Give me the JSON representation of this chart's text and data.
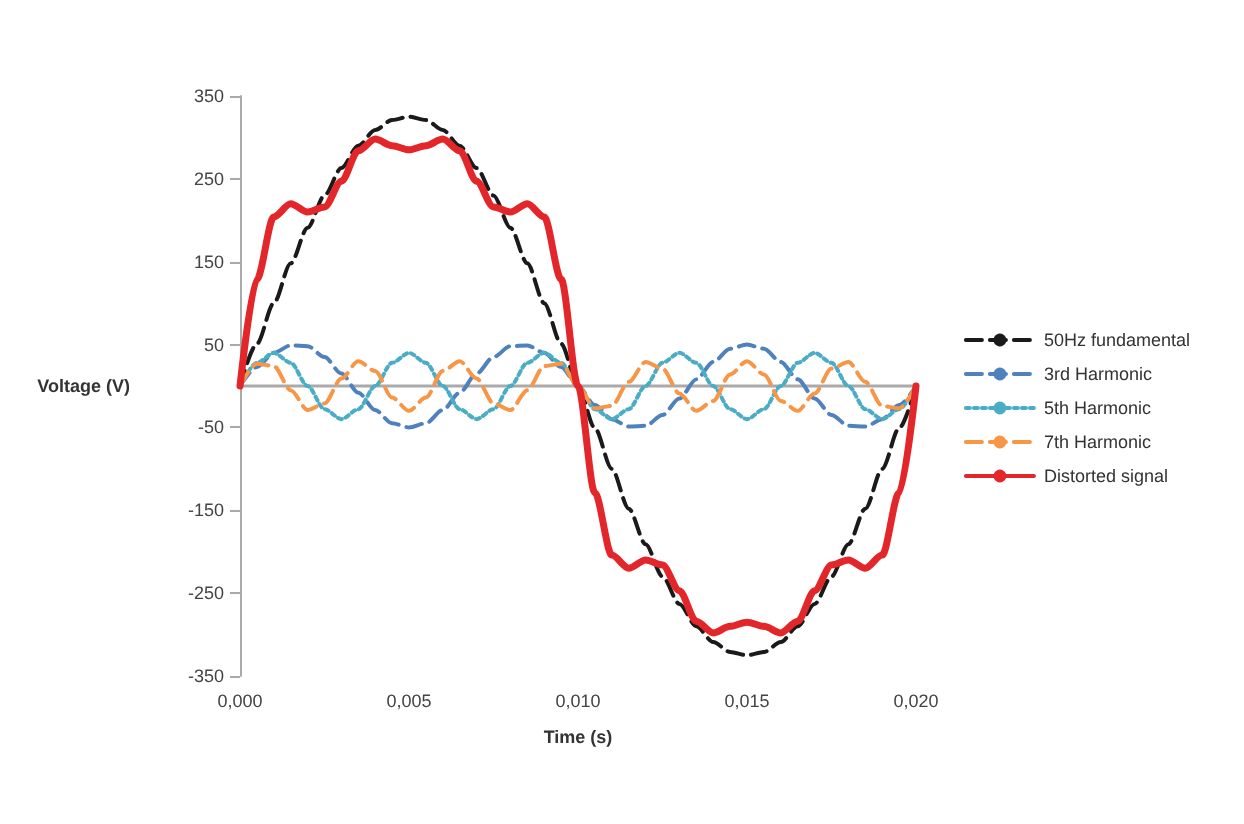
{
  "chart_data": {
    "type": "line",
    "xlabel": "Time (s)",
    "ylabel": "Voltage (V)",
    "x": [
      0,
      0.0005,
      0.001,
      0.0015,
      0.002,
      0.0025,
      0.003,
      0.0035,
      0.004,
      0.0045,
      0.005,
      0.0055,
      0.006,
      0.0065,
      0.007,
      0.0075,
      0.008,
      0.0085,
      0.009,
      0.0095,
      0.01,
      0.0105,
      0.011,
      0.0115,
      0.012,
      0.0125,
      0.013,
      0.0135,
      0.014,
      0.0145,
      0.015,
      0.0155,
      0.016,
      0.0165,
      0.017,
      0.0175,
      0.018,
      0.0185,
      0.019,
      0.0195,
      0.02
    ],
    "xlim": [
      0,
      0.02
    ],
    "xticks": [
      {
        "value": 0,
        "label": "0,000"
      },
      {
        "value": 0.005,
        "label": "0,005"
      },
      {
        "value": 0.01,
        "label": "0,010"
      },
      {
        "value": 0.015,
        "label": "0,015"
      },
      {
        "value": 0.02,
        "label": "0,020"
      }
    ],
    "ylim": [
      -350,
      350
    ],
    "yticks": [
      -350,
      -250,
      -150,
      -50,
      50,
      150,
      250,
      350
    ],
    "grid": false,
    "legend": "right",
    "marker": "none",
    "series": [
      {
        "name": "50Hz fundamental",
        "color": "#1a1a1a",
        "line_style": "dashed",
        "values": [
          0,
          51,
          100,
          148,
          191,
          230,
          263,
          290,
          309,
          321,
          325,
          321,
          309,
          290,
          263,
          230,
          191,
          148,
          100,
          51,
          0,
          -51,
          -100,
          -148,
          -191,
          -230,
          -263,
          -290,
          -309,
          -321,
          -325,
          -321,
          -309,
          -290,
          -263,
          -230,
          -191,
          -148,
          -100,
          -51,
          0
        ]
      },
      {
        "name": "3rd Harmonic",
        "color": "#4f81bd",
        "line_style": "dashed",
        "values": [
          0,
          23,
          40,
          49,
          48,
          35,
          15,
          -8,
          -29,
          -45,
          -50,
          -45,
          -29,
          -8,
          15,
          35,
          48,
          49,
          40,
          23,
          0,
          -23,
          -40,
          -49,
          -48,
          -35,
          -15,
          8,
          29,
          45,
          50,
          45,
          29,
          8,
          -15,
          -35,
          -48,
          -49,
          -40,
          -23,
          0
        ]
      },
      {
        "name": "5th Harmonic",
        "color": "#4bacc6",
        "line_style": "dotted",
        "values": [
          0,
          28,
          40,
          28,
          0,
          -28,
          -40,
          -28,
          0,
          28,
          40,
          28,
          0,
          -28,
          -40,
          -28,
          0,
          28,
          40,
          28,
          0,
          -28,
          -40,
          -28,
          0,
          28,
          40,
          28,
          0,
          -28,
          -40,
          -28,
          0,
          28,
          40,
          28,
          0,
          -28,
          -40,
          -28,
          0
        ]
      },
      {
        "name": "7th Harmonic",
        "color": "#f79646",
        "line_style": "dashed",
        "values": [
          0,
          27,
          24,
          -5,
          -29,
          -21,
          9,
          30,
          18,
          -14,
          -30,
          -14,
          18,
          30,
          9,
          -21,
          -29,
          -5,
          24,
          27,
          0,
          -27,
          -24,
          5,
          29,
          21,
          -9,
          -30,
          -18,
          14,
          30,
          14,
          -18,
          -30,
          -9,
          21,
          29,
          5,
          -24,
          -27,
          0
        ]
      },
      {
        "name": "Distorted signal",
        "color": "#e3262a",
        "line_style": "solid",
        "values": [
          0,
          129,
          204,
          220,
          210,
          216,
          247,
          284,
          298,
          290,
          285,
          290,
          298,
          284,
          247,
          216,
          210,
          220,
          204,
          129,
          0,
          -129,
          -204,
          -220,
          -210,
          -216,
          -247,
          -284,
          -298,
          -290,
          -285,
          -290,
          -298,
          -284,
          -247,
          -216,
          -210,
          -220,
          -204,
          -129,
          0
        ]
      }
    ]
  }
}
